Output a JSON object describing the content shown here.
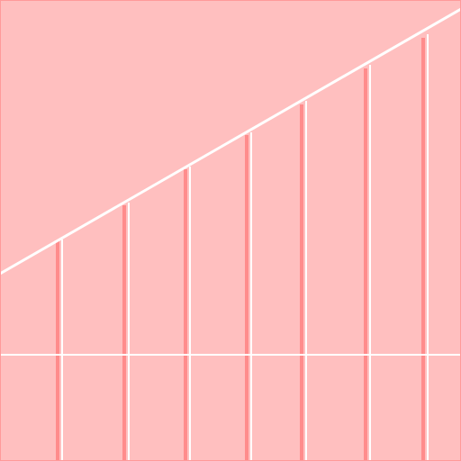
{
  "colors": {
    "background": "#ffbfbf",
    "frame": "#ff9a9a",
    "line": "#ffffff",
    "shadow": "#ff8c8c"
  },
  "pattern": {
    "icon": "diagonal-line-with-vertical-stripes"
  }
}
